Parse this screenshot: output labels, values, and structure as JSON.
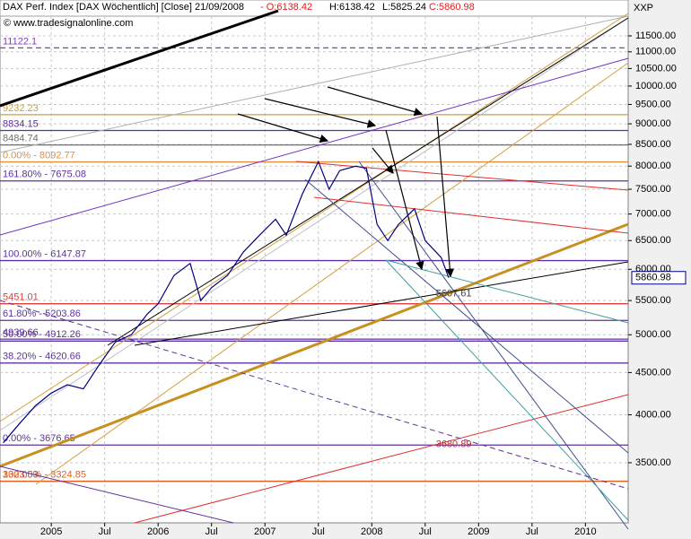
{
  "chart_data": {
    "type": "line",
    "title": "DAX Perf. Index [DAX Wöchentlich] [Close] 21/09/2008",
    "ohlc": [
      "- O:6138.42",
      "H:6138.42",
      "L:5825.24",
      "C:5860.98"
    ],
    "source": "© www.tradesignalonline.com",
    "axis_code": "XXP",
    "last_price_label": "5860.98",
    "log_scale": true,
    "grid": true,
    "xlim": [
      2004.52,
      2010.4
    ],
    "xticks": [
      {
        "value": 2005,
        "label": "2005"
      },
      {
        "value": 2005.5,
        "label": "Jul"
      },
      {
        "value": 2006,
        "label": "2006"
      },
      {
        "value": 2006.5,
        "label": "Jul"
      },
      {
        "value": 2007,
        "label": "2007"
      },
      {
        "value": 2007.5,
        "label": "Jul"
      },
      {
        "value": 2008,
        "label": "2008"
      },
      {
        "value": 2008.5,
        "label": "Jul"
      },
      {
        "value": 2009,
        "label": "2009"
      },
      {
        "value": 2009.5,
        "label": "Jul"
      },
      {
        "value": 2010,
        "label": "2010"
      }
    ],
    "ylim": [
      2960,
      12150
    ],
    "yticks": [
      {
        "value": 3500,
        "label": "3500.00"
      },
      {
        "value": 4000,
        "label": "4000.00"
      },
      {
        "value": 4500,
        "label": "4500.00"
      },
      {
        "value": 5000,
        "label": "5000.00"
      },
      {
        "value": 5500,
        "label": "5500.00"
      },
      {
        "value": 6000,
        "label": "6000.00"
      },
      {
        "value": 6500,
        "label": "6500.00"
      },
      {
        "value": 7000,
        "label": "7000.00"
      },
      {
        "value": 7500,
        "label": "7500.00"
      },
      {
        "value": 8000,
        "label": "8000.00"
      },
      {
        "value": 8500,
        "label": "8500.00"
      },
      {
        "value": 9000,
        "label": "9000.00"
      },
      {
        "value": 9500,
        "label": "9500.00"
      },
      {
        "value": 10000,
        "label": "10000.00"
      },
      {
        "value": 10500,
        "label": "10500.00"
      },
      {
        "value": 11000,
        "label": "11000.00"
      },
      {
        "value": 11500,
        "label": "11500.00"
      }
    ],
    "series": [
      {
        "name": "DAX",
        "color": "#000080",
        "x": [
          2004.55,
          2004.7,
          2004.85,
          2005.0,
          2005.15,
          2005.3,
          2005.45,
          2005.6,
          2005.75,
          2005.9,
          2006.0,
          2006.15,
          2006.3,
          2006.4,
          2006.5,
          2006.65,
          2006.8,
          2006.95,
          2007.1,
          2007.2,
          2007.35,
          2007.5,
          2007.6,
          2007.7,
          2007.85,
          2007.95,
          2008.05,
          2008.15,
          2008.25,
          2008.4,
          2008.5,
          2008.6,
          2008.65,
          2008.72
        ],
        "values": [
          3700,
          3900,
          4100,
          4250,
          4350,
          4300,
          4600,
          4900,
          5000,
          5300,
          5450,
          5900,
          6100,
          5500,
          5700,
          5900,
          6300,
          6600,
          6900,
          6600,
          7400,
          8100,
          7500,
          7900,
          8000,
          7950,
          6800,
          6500,
          6800,
          7100,
          6500,
          6300,
          6200,
          5860
        ]
      }
    ],
    "levels": [
      {
        "label": "11122.1",
        "value": 11122.1,
        "color": "#8040c0",
        "dashed": true
      },
      {
        "label": "9232.23",
        "value": 9232.23,
        "color": "#c8a040",
        "dashed": false
      },
      {
        "label": "8834.15",
        "value": 8834.15,
        "color": "#6030a0",
        "dashed": false
      },
      {
        "label": "8484.74",
        "value": 8484.74,
        "color": "#707070",
        "dashed": false
      },
      {
        "label": "0.00% - 8092.77",
        "value": 8092.77,
        "color": "#e09040",
        "dashed": false
      },
      {
        "label": "161.80% - 7675.08",
        "value": 7675.08,
        "color": "#6030a0",
        "dashed": false
      },
      {
        "label": "100.00% - 6147.87",
        "value": 6147.87,
        "color": "#6030a0",
        "dashed": false
      },
      {
        "label": "5451.01",
        "value": 5451.01,
        "color": "#e04040",
        "dashed": false
      },
      {
        "label": "61.80% - 5203.86",
        "value": 5203.86,
        "color": "#6030a0",
        "dashed": false
      },
      {
        "label": "4939.66",
        "value": 4939.66,
        "color": "#6030a0",
        "dashed": false
      },
      {
        "label": "50.00% - 4912.26",
        "value": 4912.26,
        "color": "#6030a0",
        "dashed": false
      },
      {
        "label": "38.20% - 4620.66",
        "value": 4620.66,
        "color": "#6030a0",
        "dashed": false
      },
      {
        "label": "0.00% - 3676.65",
        "value": 3676.65,
        "color": "#6030a0",
        "dashed": false
      },
      {
        "label": "3323.53",
        "value": 3323.53,
        "color": "#e04020",
        "dashed": false
      },
      {
        "label": "100.00% - 3324.85",
        "value": 3324.85,
        "color": "#e06020",
        "dashed": false
      }
    ],
    "annotations": [
      {
        "label": "3680.89",
        "x": 2008.6,
        "value": 3680.89,
        "color": "#c03030"
      },
      {
        "label": "5607.61",
        "x": 2008.6,
        "value": 5607.61,
        "color": "#404040"
      }
    ]
  }
}
